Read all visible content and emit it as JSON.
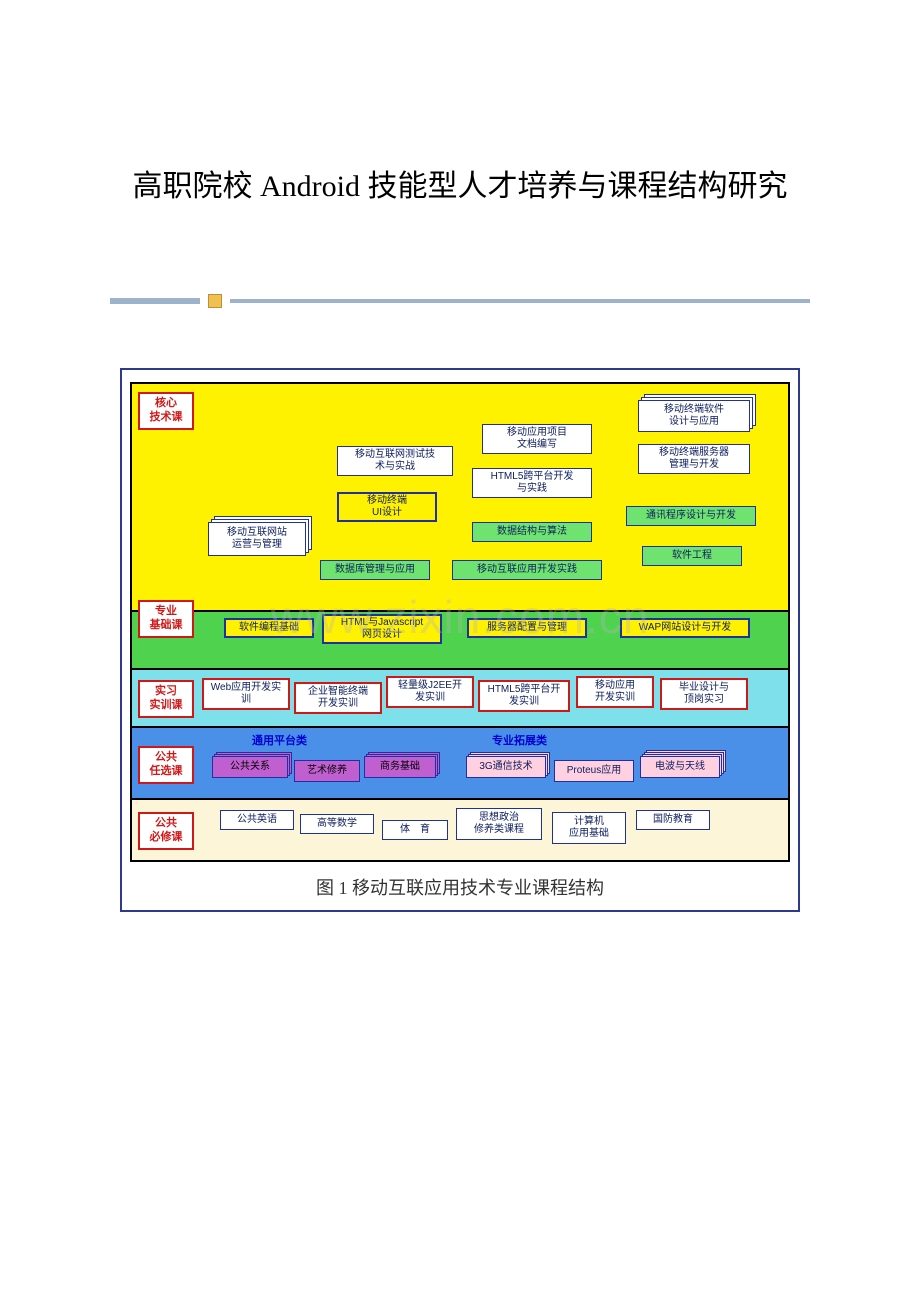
{
  "page": {
    "title": "高职院校 Android 技能型人才培养与课程结构研究",
    "watermark": "www.zixin.com.cn"
  },
  "diagram": {
    "caption": "图 1 移动互联应用技术专业课程结构",
    "tiers": {
      "core_tech": {
        "label": "核心\n技术课",
        "bg": "#fff200"
      },
      "pro_foundation": {
        "label": "专业\n基础课",
        "bg": "#4fd34f"
      },
      "practice": {
        "label": "实习\n实训课",
        "bg": "#7ee0ea"
      },
      "elective": {
        "label": "公共\n任选课",
        "bg": "#4a8fe8"
      },
      "required": {
        "label": "公共\n必修课",
        "bg": "#fcf5d8"
      }
    },
    "categories": {
      "platform": "通用平台类",
      "extension": "专业拓展类"
    },
    "boxes": {
      "core": [
        {
          "id": "c1",
          "text": "移动互联网站\n运营与管理",
          "stack": true
        },
        {
          "id": "c2",
          "text": "移动互联网测试技\n术与实战"
        },
        {
          "id": "c3",
          "text": "移动终端\nUI设计"
        },
        {
          "id": "c4",
          "text": "数据库管理与应用"
        },
        {
          "id": "c5",
          "text": "移动应用项目\n文档编写"
        },
        {
          "id": "c6",
          "text": "HTML5跨平台开发\n与实践"
        },
        {
          "id": "c7",
          "text": "数据结构与算法"
        },
        {
          "id": "c8",
          "text": "移动互联应用开发实践"
        },
        {
          "id": "c9",
          "text": "移动终端软件\n设计与应用",
          "stack": true
        },
        {
          "id": "c10",
          "text": "移动终端服务器\n管理与开发"
        },
        {
          "id": "c11",
          "text": "通讯程序设计与开发"
        },
        {
          "id": "c12",
          "text": "软件工程"
        }
      ],
      "pro": [
        {
          "id": "p1",
          "text": "软件编程基础"
        },
        {
          "id": "p2",
          "text": "HTML与Javascript\n网页设计"
        },
        {
          "id": "p3",
          "text": "服务器配置与管理"
        },
        {
          "id": "p4",
          "text": "WAP网站设计与开发"
        }
      ],
      "practice": [
        {
          "id": "t1",
          "text": "Web应用开发实\n训"
        },
        {
          "id": "t2",
          "text": "企业智能终端\n开发实训"
        },
        {
          "id": "t3",
          "text": "轻量级J2EE开\n发实训"
        },
        {
          "id": "t4",
          "text": "HTML5跨平台开\n发实训"
        },
        {
          "id": "t5",
          "text": "移动应用\n开发实训"
        },
        {
          "id": "t6",
          "text": "毕业设计与\n顶岗实习"
        }
      ],
      "elective": [
        {
          "id": "e1",
          "text": "公共关系"
        },
        {
          "id": "e2",
          "text": "艺术修养"
        },
        {
          "id": "e3",
          "text": "商务基础"
        },
        {
          "id": "e4",
          "text": "3G通信技术"
        },
        {
          "id": "e5",
          "text": "Proteus应用"
        },
        {
          "id": "e6",
          "text": "电波与天线"
        }
      ],
      "required": [
        {
          "id": "r1",
          "text": "公共英语"
        },
        {
          "id": "r2",
          "text": "高等数学"
        },
        {
          "id": "r3",
          "text": "体　育"
        },
        {
          "id": "r4",
          "text": "思想政治\n修养类课程"
        },
        {
          "id": "r5",
          "text": "计算机\n应用基础"
        },
        {
          "id": "r6",
          "text": "国防教育"
        }
      ]
    },
    "colors": {
      "border_red": "#d01818",
      "border_blue": "#2030a0",
      "bg_yellow": "#fff200",
      "bg_green_box": "#6fe36f",
      "bg_purple": "#c060d0",
      "bg_pink": "#ffd0e0",
      "bg_white": "#ffffff"
    }
  }
}
